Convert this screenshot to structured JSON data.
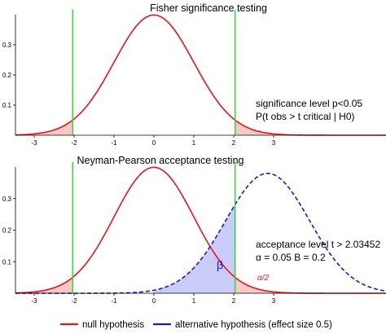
{
  "chart_data": [
    {
      "type": "line",
      "title": "Fisher significance testing",
      "xlim": [
        -3.4,
        3.9
      ],
      "ylim": [
        0,
        0.4
      ],
      "x_ticks": [
        "-3",
        "-2",
        "-1",
        "0",
        "1",
        "2",
        "3"
      ],
      "y_ticks": [
        "0.1",
        "0.2",
        "0.3"
      ],
      "series": [
        {
          "label": "null hypothesis",
          "kind": "normal-pdf",
          "mean": 0,
          "sd": 1,
          "color": "#e8141b",
          "style": "solid"
        }
      ],
      "critical_values": [
        -2.03452,
        2.03452
      ],
      "critical_color": "#3fd23a",
      "shaded_tails": {
        "from_left": -2.03452,
        "from_right": 2.03452,
        "color": "#f7c9c6"
      },
      "annotations": [
        {
          "text": "significance level p<0.05",
          "kind": "label"
        },
        {
          "text": "P(t obs > t critical | H0)",
          "kind": "label"
        }
      ]
    },
    {
      "type": "line",
      "title": "Neyman-Pearson acceptance testing",
      "xlim": [
        -3.4,
        3.9
      ],
      "ylim": [
        0,
        0.4
      ],
      "x_ticks": [
        "-3",
        "-2",
        "-1",
        "0",
        "1",
        "2",
        "3"
      ],
      "y_ticks": [
        "0.1",
        "0.2",
        "0.3"
      ],
      "series": [
        {
          "label": "null hypothesis",
          "kind": "normal-pdf",
          "mean": 0,
          "sd": 1,
          "color": "#e8141b",
          "style": "solid"
        },
        {
          "label": "alternative hypothesis",
          "kind": "normal-pdf",
          "mean": 2.85,
          "sd": 1.05,
          "color": "#1f16d6",
          "style": "dashed"
        }
      ],
      "critical_values": [
        -2.03452,
        2.03452
      ],
      "critical_color": "#3fd23a",
      "shaded_tails": {
        "from_left": -2.03452,
        "from_right": 2.03452,
        "color": "#f7c9c6"
      },
      "shaded_beta": {
        "to": 2.03452,
        "color": "#c9ccf7"
      },
      "annotations": [
        {
          "text": "acceptance level t > 2.03452",
          "kind": "label"
        },
        {
          "text": "α = 0.05  Β = 0.2",
          "kind": "label"
        },
        {
          "text": "β",
          "kind": "region-label"
        },
        {
          "text": "α/2",
          "kind": "region-label"
        }
      ]
    }
  ],
  "legend": {
    "items": [
      {
        "label": "null hypothesis",
        "color": "#e8141b"
      },
      {
        "label": "alternative hypothesis (effect size 0.5)",
        "color": "#1f16d6"
      }
    ]
  }
}
